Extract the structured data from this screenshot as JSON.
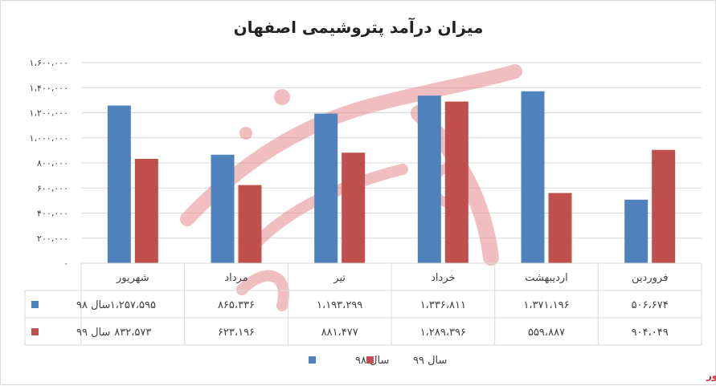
{
  "chart_data": {
    "type": "bar",
    "title": "میزان درآمد پتروشیمی اصفهان",
    "categories": [
      "فروردین",
      "اردیبهشت",
      "خرداد",
      "تیر",
      "مرداد",
      "شهریور"
    ],
    "series": [
      {
        "name": "سال ۹۸",
        "color": "#4F81BD",
        "values": [
          506674,
          1371196,
          1336811,
          1193299,
          865336,
          1257595
        ],
        "labels": [
          "۵۰۶،۶۷۴",
          "۱،۳۷۱،۱۹۶",
          "۱،۳۳۶،۸۱۱",
          "۱،۱۹۳،۲۹۹",
          "۸۶۵،۳۳۶",
          "۱،۲۵۷،۵۹۵"
        ]
      },
      {
        "name": "سال ۹۹",
        "color": "#C0504D",
        "values": [
          904049,
          559887,
          1289396,
          881477,
          623196,
          832573
        ],
        "labels": [
          "۹۰۴،۰۴۹",
          "۵۵۹،۸۸۷",
          "۱،۲۸۹،۳۹۶",
          "۸۸۱،۴۷۷",
          "۶۲۳،۱۹۶",
          "۸۳۲،۵۷۳"
        ]
      }
    ],
    "ylim": [
      0,
      1600000
    ],
    "yticks": [
      0,
      200000,
      400000,
      600000,
      800000,
      1000000,
      1200000,
      1400000,
      1600000
    ],
    "ytick_labels": [
      "۰",
      "۲۰۰،۰۰۰",
      "۴۰۰،۰۰۰",
      "۶۰۰،۰۰۰",
      "۸۰۰،۰۰۰",
      "۱،۰۰۰،۰۰۰",
      "۱،۲۰۰،۰۰۰",
      "۱،۴۰۰،۰۰۰",
      "۱،۶۰۰،۰۰۰"
    ],
    "grid": true,
    "data_table": true,
    "legend_position": "bottom"
  },
  "watermark": {
    "text": "بورس نیوز",
    "color": "#d9262c"
  }
}
